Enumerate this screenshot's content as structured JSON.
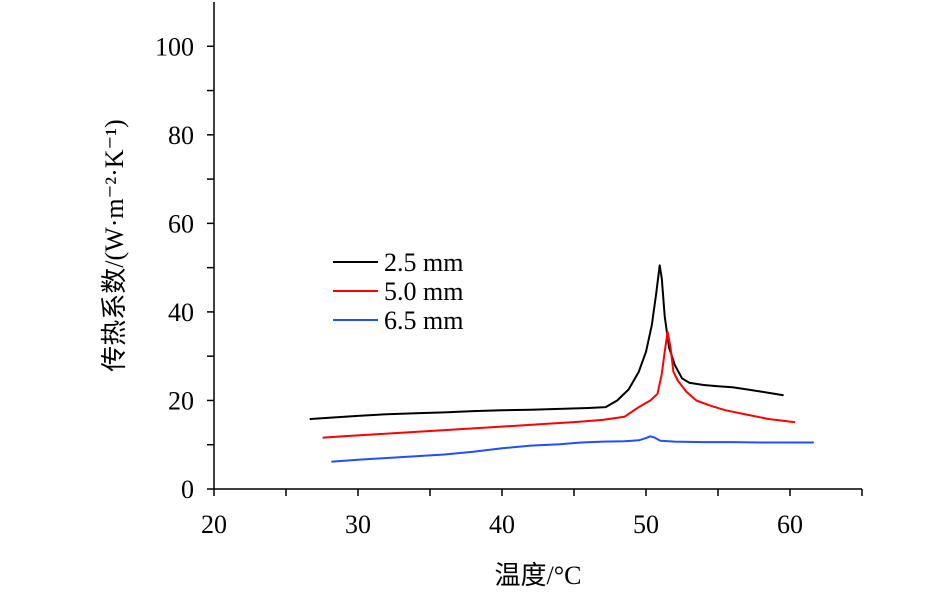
{
  "chart_data": {
    "type": "line",
    "title": "",
    "xlabel": "温度/°C",
    "ylabel": "传热系数/(W·m⁻²·K⁻¹)",
    "xlim": [
      20,
      65
    ],
    "ylim": [
      0,
      110
    ],
    "xticks": [
      20,
      30,
      40,
      50,
      60
    ],
    "yticks": [
      0,
      20,
      40,
      60,
      80,
      100
    ],
    "grid": false,
    "legend_position": "center-left",
    "series": [
      {
        "name": "2.5 mm",
        "color": "#000000",
        "x": [
          26.7,
          28,
          30,
          32,
          34,
          36,
          38,
          40,
          42,
          44,
          46,
          47.2,
          48,
          48.8,
          49.5,
          50.0,
          50.4,
          50.7,
          50.95,
          51.1,
          51.3,
          51.6,
          52.0,
          52.5,
          53.0,
          54,
          55,
          56,
          57,
          58,
          59.5
        ],
        "y": [
          15.8,
          16.1,
          16.5,
          16.9,
          17.1,
          17.3,
          17.6,
          17.8,
          17.9,
          18.1,
          18.3,
          18.5,
          20.0,
          22.5,
          26.5,
          31.0,
          37.0,
          44.0,
          50.5,
          47.5,
          39.0,
          32.0,
          28.0,
          25.0,
          24.0,
          23.5,
          23.2,
          23.0,
          22.5,
          22.0,
          21.2
        ]
      },
      {
        "name": "5.0 mm",
        "color": "#ff0000",
        "x": [
          27.6,
          29,
          31,
          33,
          35,
          37,
          39,
          41,
          43,
          45,
          47,
          48.5,
          49.5,
          50.3,
          50.8,
          51.1,
          51.3,
          51.5,
          51.7,
          51.9,
          52.2,
          52.8,
          53.5,
          54.5,
          55.5,
          57,
          58.5,
          60.3
        ],
        "y": [
          11.6,
          11.9,
          12.3,
          12.7,
          13.1,
          13.5,
          13.9,
          14.3,
          14.7,
          15.1,
          15.6,
          16.3,
          18.5,
          20.0,
          21.5,
          26.0,
          31.0,
          35.5,
          32.0,
          26.5,
          24.5,
          22.0,
          20.0,
          18.8,
          17.8,
          16.8,
          15.8,
          15.1
        ]
      },
      {
        "name": "6.5 mm",
        "color": "#1f4fff",
        "x": [
          28.2,
          30,
          32,
          34,
          36,
          38,
          40,
          42,
          44,
          45.5,
          47,
          48.5,
          49.5,
          50.0,
          50.3,
          50.6,
          51.0,
          52,
          54,
          56,
          58,
          60,
          61.6
        ],
        "y": [
          6.2,
          6.6,
          7.0,
          7.4,
          7.8,
          8.4,
          9.2,
          9.8,
          10.1,
          10.5,
          10.7,
          10.8,
          11.0,
          11.5,
          11.9,
          11.6,
          10.9,
          10.7,
          10.6,
          10.6,
          10.5,
          10.5,
          10.5
        ]
      }
    ]
  }
}
